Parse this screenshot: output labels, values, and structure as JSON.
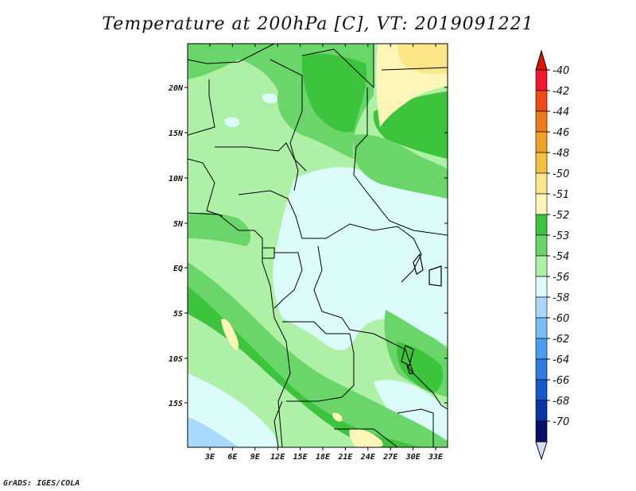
{
  "title": "Temperature at 200hPa [C], VT: 2019091221",
  "credit": "GrADS: IGES/COLA",
  "lat_ticks": [
    "20N",
    "15N",
    "10N",
    "5N",
    "EQ",
    "5S",
    "10S",
    "15S"
  ],
  "lon_ticks": [
    "3E",
    "6E",
    "9E",
    "12E",
    "15E",
    "18E",
    "21E",
    "24E",
    "27E",
    "30E",
    "33E"
  ],
  "colorbar": {
    "labels": [
      "-40",
      "-42",
      "-44",
      "-46",
      "-48",
      "-50",
      "-51",
      "-52",
      "-53",
      "-54",
      "-56",
      "-58",
      "-60",
      "-62",
      "-64",
      "-66",
      "-68",
      "-70"
    ],
    "colors": [
      "#f0182a",
      "#f04a18",
      "#f07818",
      "#f2a028",
      "#f6c040",
      "#fde68a",
      "#fdf6b8",
      "#3cc43c",
      "#6ad66a",
      "#aef0a6",
      "#dcfcfc",
      "#a8d8fc",
      "#78bcf8",
      "#4a9cf0",
      "#2e7ce4",
      "#1458cc",
      "#0a34a8",
      "#06106a"
    ],
    "top_cap_color": "#dc1400",
    "bottom_cap_color": "#dcdcff"
  },
  "regions": [
    {
      "name": "light-green-background",
      "color": "#aef0a6"
    },
    {
      "name": "central-cold-pool",
      "color": "#dcfcfc"
    },
    {
      "name": "mid-green-bands",
      "color": "#6ad66a"
    },
    {
      "name": "dark-green-bands",
      "color": "#3cc43c"
    },
    {
      "name": "warm-pale-yellow",
      "color": "#fdf6b8"
    },
    {
      "name": "warm-yellow",
      "color": "#fde68a"
    },
    {
      "name": "blue-southwest",
      "color": "#a8d8fc"
    }
  ]
}
